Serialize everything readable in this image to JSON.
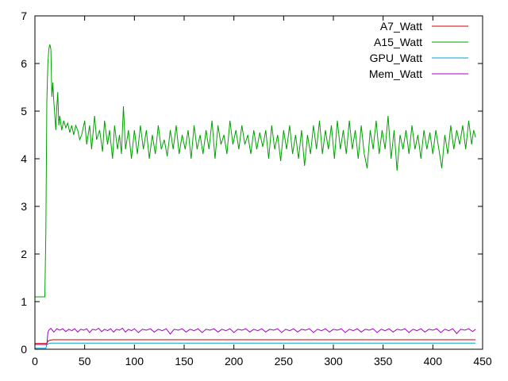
{
  "chart_data": {
    "type": "line",
    "title": "",
    "xlabel": "",
    "ylabel": "",
    "xlim": [
      0,
      450
    ],
    "ylim": [
      0,
      7
    ],
    "xticks": [
      0,
      50,
      100,
      150,
      200,
      250,
      300,
      350,
      400,
      450
    ],
    "yticks": [
      0,
      1,
      2,
      3,
      4,
      5,
      6,
      7
    ],
    "grid": false,
    "legend_position": "top-right",
    "series": [
      {
        "name": "A7_Watt",
        "color": "#cc0000",
        "points": [
          [
            0,
            0.12
          ],
          [
            12,
            0.12
          ],
          [
            13,
            0.17
          ],
          [
            15,
            0.19
          ],
          [
            18,
            0.2
          ],
          [
            25,
            0.2
          ],
          [
            100,
            0.2
          ],
          [
            200,
            0.2
          ],
          [
            300,
            0.2
          ],
          [
            400,
            0.2
          ],
          [
            443,
            0.2
          ]
        ]
      },
      {
        "name": "A15_Watt",
        "color": "#00a000",
        "points": [
          [
            0,
            1.1
          ],
          [
            10,
            1.1
          ],
          [
            11,
            2.5
          ],
          [
            12,
            5.2
          ],
          [
            13,
            6.0
          ],
          [
            14,
            6.3
          ],
          [
            15,
            6.4
          ],
          [
            16,
            6.3
          ],
          [
            17,
            5.3
          ],
          [
            18,
            5.6
          ],
          [
            19,
            5.2
          ],
          [
            20,
            4.9
          ],
          [
            21,
            4.6
          ],
          [
            22,
            5.1
          ],
          [
            23,
            5.4
          ],
          [
            24,
            4.7
          ],
          [
            25,
            4.9
          ],
          [
            27,
            4.6
          ],
          [
            29,
            4.8
          ],
          [
            31,
            4.65
          ],
          [
            33,
            4.75
          ],
          [
            35,
            4.55
          ],
          [
            37,
            4.7
          ],
          [
            39,
            4.5
          ],
          [
            41,
            4.7
          ],
          [
            43,
            4.6
          ],
          [
            45,
            4.4
          ],
          [
            47,
            4.5
          ],
          [
            50,
            4.8
          ],
          [
            52,
            4.3
          ],
          [
            55,
            4.7
          ],
          [
            57,
            4.2
          ],
          [
            60,
            4.9
          ],
          [
            62,
            4.4
          ],
          [
            65,
            4.6
          ],
          [
            68,
            4.15
          ],
          [
            70,
            4.8
          ],
          [
            73,
            4.3
          ],
          [
            75,
            4.6
          ],
          [
            78,
            4.0
          ],
          [
            80,
            4.7
          ],
          [
            83,
            4.2
          ],
          [
            85,
            4.5
          ],
          [
            87,
            4.1
          ],
          [
            89,
            5.1
          ],
          [
            91,
            4.2
          ],
          [
            94,
            4.6
          ],
          [
            97,
            4.0
          ],
          [
            100,
            4.6
          ],
          [
            103,
            4.1
          ],
          [
            106,
            4.7
          ],
          [
            109,
            4.2
          ],
          [
            112,
            4.6
          ],
          [
            115,
            4.0
          ],
          [
            118,
            4.5
          ],
          [
            121,
            4.1
          ],
          [
            124,
            4.7
          ],
          [
            127,
            4.2
          ],
          [
            130,
            4.4
          ],
          [
            133,
            4.05
          ],
          [
            136,
            4.6
          ],
          [
            139,
            4.2
          ],
          [
            142,
            4.7
          ],
          [
            145,
            4.1
          ],
          [
            148,
            4.5
          ],
          [
            151,
            4.2
          ],
          [
            154,
            4.6
          ],
          [
            157,
            4.0
          ],
          [
            160,
            4.7
          ],
          [
            163,
            4.2
          ],
          [
            166,
            4.5
          ],
          [
            169,
            4.1
          ],
          [
            172,
            4.6
          ],
          [
            175,
            4.2
          ],
          [
            178,
            4.8
          ],
          [
            181,
            4.0
          ],
          [
            184,
            4.7
          ],
          [
            187,
            4.3
          ],
          [
            190,
            4.5
          ],
          [
            193,
            4.1
          ],
          [
            196,
            4.8
          ],
          [
            199,
            4.3
          ],
          [
            202,
            4.6
          ],
          [
            205,
            4.2
          ],
          [
            208,
            4.7
          ],
          [
            211,
            4.3
          ],
          [
            214,
            4.5
          ],
          [
            217,
            4.1
          ],
          [
            220,
            4.6
          ],
          [
            223,
            4.2
          ],
          [
            226,
            4.55
          ],
          [
            229,
            4.25
          ],
          [
            232,
            4.6
          ],
          [
            235,
            4.0
          ],
          [
            238,
            4.7
          ],
          [
            241,
            4.2
          ],
          [
            244,
            4.5
          ],
          [
            247,
            3.95
          ],
          [
            250,
            4.6
          ],
          [
            253,
            4.2
          ],
          [
            256,
            4.7
          ],
          [
            259,
            4.1
          ],
          [
            262,
            4.5
          ],
          [
            265,
            4.0
          ],
          [
            268,
            4.6
          ],
          [
            271,
            3.85
          ],
          [
            274,
            4.5
          ],
          [
            277,
            4.1
          ],
          [
            280,
            4.7
          ],
          [
            283,
            4.2
          ],
          [
            286,
            4.8
          ],
          [
            289,
            4.1
          ],
          [
            292,
            4.6
          ],
          [
            295,
            4.2
          ],
          [
            298,
            4.7
          ],
          [
            301,
            4.0
          ],
          [
            304,
            4.8
          ],
          [
            307,
            4.2
          ],
          [
            310,
            4.6
          ],
          [
            313,
            4.1
          ],
          [
            316,
            4.8
          ],
          [
            319,
            4.2
          ],
          [
            322,
            4.6
          ],
          [
            325,
            4.0
          ],
          [
            328,
            4.7
          ],
          [
            331,
            4.1
          ],
          [
            334,
            3.8
          ],
          [
            337,
            4.6
          ],
          [
            340,
            4.2
          ],
          [
            343,
            4.8
          ],
          [
            346,
            4.1
          ],
          [
            349,
            4.6
          ],
          [
            352,
            4.2
          ],
          [
            355,
            4.9
          ],
          [
            358,
            4.0
          ],
          [
            361,
            4.6
          ],
          [
            364,
            3.75
          ],
          [
            367,
            4.5
          ],
          [
            370,
            4.2
          ],
          [
            373,
            4.6
          ],
          [
            376,
            4.1
          ],
          [
            379,
            4.7
          ],
          [
            382,
            4.2
          ],
          [
            385,
            4.5
          ],
          [
            388,
            4.0
          ],
          [
            391,
            4.6
          ],
          [
            394,
            4.2
          ],
          [
            397,
            4.55
          ],
          [
            400,
            4.1
          ],
          [
            403,
            4.6
          ],
          [
            406,
            4.2
          ],
          [
            409,
            3.8
          ],
          [
            412,
            4.5
          ],
          [
            415,
            4.1
          ],
          [
            418,
            4.7
          ],
          [
            421,
            4.2
          ],
          [
            424,
            4.6
          ],
          [
            427,
            4.3
          ],
          [
            430,
            4.7
          ],
          [
            433,
            4.2
          ],
          [
            436,
            4.8
          ],
          [
            439,
            4.3
          ],
          [
            441,
            4.6
          ],
          [
            443,
            4.45
          ]
        ]
      },
      {
        "name": "GPU_Watt",
        "color": "#00a0c8",
        "points": [
          [
            0,
            0.02
          ],
          [
            11,
            0.02
          ],
          [
            12,
            0.1
          ],
          [
            14,
            0.12
          ],
          [
            16,
            0.13
          ],
          [
            20,
            0.13
          ],
          [
            100,
            0.13
          ],
          [
            200,
            0.13
          ],
          [
            300,
            0.13
          ],
          [
            400,
            0.13
          ],
          [
            443,
            0.13
          ]
        ]
      },
      {
        "name": "Mem_Watt",
        "color": "#a000c0",
        "points": [
          [
            0,
            0.1
          ],
          [
            12,
            0.1
          ],
          [
            13,
            0.35
          ],
          [
            14,
            0.4
          ],
          [
            16,
            0.44
          ],
          [
            19,
            0.36
          ],
          [
            22,
            0.43
          ],
          [
            25,
            0.4
          ],
          [
            28,
            0.43
          ],
          [
            31,
            0.37
          ],
          [
            34,
            0.42
          ],
          [
            37,
            0.39
          ],
          [
            40,
            0.43
          ],
          [
            43,
            0.36
          ],
          [
            46,
            0.42
          ],
          [
            49,
            0.4
          ],
          [
            52,
            0.43
          ],
          [
            55,
            0.35
          ],
          [
            58,
            0.42
          ],
          [
            61,
            0.4
          ],
          [
            64,
            0.44
          ],
          [
            67,
            0.37
          ],
          [
            70,
            0.42
          ],
          [
            73,
            0.39
          ],
          [
            76,
            0.43
          ],
          [
            79,
            0.36
          ],
          [
            82,
            0.42
          ],
          [
            85,
            0.4
          ],
          [
            88,
            0.44
          ],
          [
            91,
            0.36
          ],
          [
            94,
            0.42
          ],
          [
            97,
            0.39
          ],
          [
            100,
            0.43
          ],
          [
            104,
            0.35
          ],
          [
            108,
            0.42
          ],
          [
            112,
            0.4
          ],
          [
            116,
            0.43
          ],
          [
            120,
            0.36
          ],
          [
            124,
            0.42
          ],
          [
            128,
            0.39
          ],
          [
            132,
            0.43
          ],
          [
            136,
            0.32
          ],
          [
            140,
            0.42
          ],
          [
            144,
            0.4
          ],
          [
            148,
            0.43
          ],
          [
            152,
            0.36
          ],
          [
            156,
            0.42
          ],
          [
            160,
            0.39
          ],
          [
            164,
            0.43
          ],
          [
            168,
            0.35
          ],
          [
            172,
            0.42
          ],
          [
            176,
            0.4
          ],
          [
            180,
            0.43
          ],
          [
            184,
            0.36
          ],
          [
            188,
            0.42
          ],
          [
            192,
            0.39
          ],
          [
            196,
            0.43
          ],
          [
            200,
            0.35
          ],
          [
            204,
            0.42
          ],
          [
            208,
            0.4
          ],
          [
            212,
            0.43
          ],
          [
            216,
            0.36
          ],
          [
            220,
            0.42
          ],
          [
            224,
            0.39
          ],
          [
            228,
            0.43
          ],
          [
            232,
            0.36
          ],
          [
            236,
            0.42
          ],
          [
            240,
            0.4
          ],
          [
            244,
            0.43
          ],
          [
            248,
            0.35
          ],
          [
            252,
            0.42
          ],
          [
            256,
            0.39
          ],
          [
            260,
            0.43
          ],
          [
            264,
            0.36
          ],
          [
            268,
            0.42
          ],
          [
            272,
            0.4
          ],
          [
            276,
            0.43
          ],
          [
            280,
            0.35
          ],
          [
            284,
            0.42
          ],
          [
            288,
            0.39
          ],
          [
            292,
            0.43
          ],
          [
            296,
            0.36
          ],
          [
            300,
            0.42
          ],
          [
            304,
            0.4
          ],
          [
            308,
            0.43
          ],
          [
            312,
            0.35
          ],
          [
            316,
            0.42
          ],
          [
            320,
            0.39
          ],
          [
            324,
            0.43
          ],
          [
            328,
            0.36
          ],
          [
            332,
            0.42
          ],
          [
            336,
            0.4
          ],
          [
            340,
            0.43
          ],
          [
            344,
            0.35
          ],
          [
            348,
            0.42
          ],
          [
            352,
            0.39
          ],
          [
            356,
            0.43
          ],
          [
            360,
            0.36
          ],
          [
            364,
            0.42
          ],
          [
            368,
            0.4
          ],
          [
            372,
            0.43
          ],
          [
            376,
            0.35
          ],
          [
            380,
            0.42
          ],
          [
            384,
            0.39
          ],
          [
            388,
            0.43
          ],
          [
            392,
            0.36
          ],
          [
            396,
            0.42
          ],
          [
            400,
            0.4
          ],
          [
            404,
            0.43
          ],
          [
            408,
            0.35
          ],
          [
            412,
            0.42
          ],
          [
            416,
            0.39
          ],
          [
            420,
            0.43
          ],
          [
            424,
            0.33
          ],
          [
            428,
            0.42
          ],
          [
            432,
            0.4
          ],
          [
            436,
            0.43
          ],
          [
            440,
            0.37
          ],
          [
            443,
            0.42
          ]
        ]
      }
    ]
  }
}
